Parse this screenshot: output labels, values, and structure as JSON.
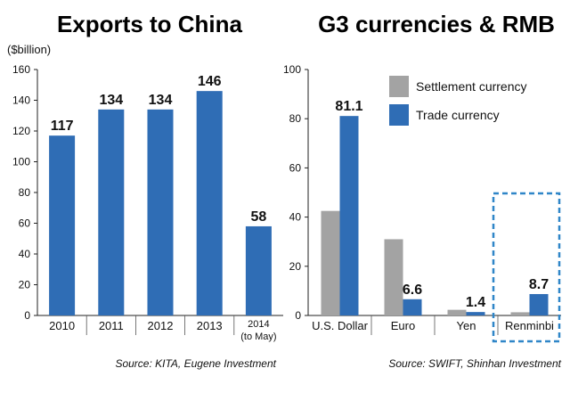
{
  "chart_data": [
    {
      "type": "bar",
      "title": "Exports to China",
      "ylabel": "($billion)",
      "ylim": [
        0,
        160
      ],
      "yticks": [
        0,
        20,
        40,
        60,
        80,
        100,
        120,
        140,
        160
      ],
      "categories": [
        "2010",
        "2011",
        "2012",
        "2013",
        "2014"
      ],
      "category_sublabels": [
        "",
        "",
        "",
        "",
        "(to May)"
      ],
      "values": [
        117,
        134,
        134,
        146,
        58
      ],
      "data_labels": [
        "117",
        "134",
        "134",
        "146",
        "58"
      ],
      "source": "Source: KITA, Eugene Investment",
      "colors": {
        "bar": "#2f6db5"
      }
    },
    {
      "type": "bar",
      "title": "G3 currencies & RMB",
      "ylim": [
        0,
        100
      ],
      "yticks": [
        0,
        20,
        40,
        60,
        80,
        100
      ],
      "categories": [
        "U.S. Dollar",
        "Euro",
        "Yen",
        "Renminbi"
      ],
      "series": [
        {
          "name": "Settlement currency",
          "values": [
            42.5,
            31.0,
            2.3,
            1.3
          ],
          "color": "#a3a3a3"
        },
        {
          "name": "Trade currency",
          "values": [
            81.1,
            6.6,
            1.4,
            8.7
          ],
          "color": "#2f6db5"
        }
      ],
      "data_labels": [
        "81.1",
        "6.6",
        "1.4",
        "8.7"
      ],
      "highlight": "Renminbi",
      "highlight_color": "#2f86c8",
      "legend": "top-right",
      "source": "Source: SWIFT, Shinhan Investment"
    }
  ]
}
